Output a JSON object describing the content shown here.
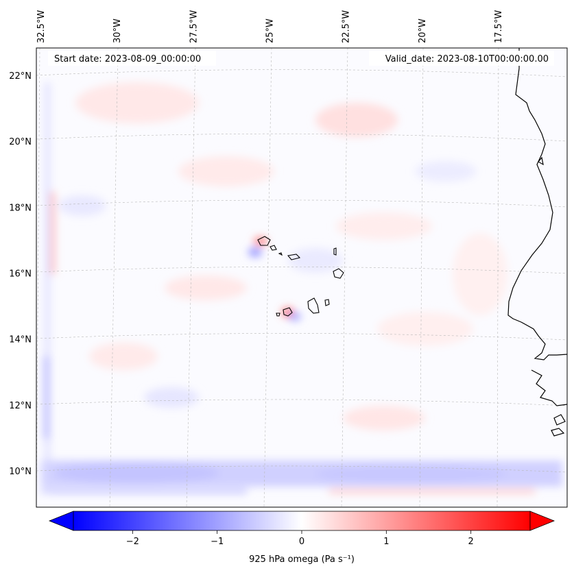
{
  "map": {
    "start_label": "Start date: 2023-08-09_00:00:00",
    "valid_label": "Valid_date: 2023-08-10T00:00:00.00",
    "lon_labels": [
      {
        "lon": -32.5,
        "text": "32.5°W"
      },
      {
        "lon": -30,
        "text": "30°W"
      },
      {
        "lon": -27.5,
        "text": "27.5°W"
      },
      {
        "lon": -25,
        "text": "25°W"
      },
      {
        "lon": -22.5,
        "text": "22.5°W"
      },
      {
        "lon": -20,
        "text": "20°W"
      },
      {
        "lon": -17.5,
        "text": "17.5°W"
      }
    ],
    "lat_labels": [
      {
        "lat": 22,
        "text": "22°N"
      },
      {
        "lat": 20,
        "text": "20°N"
      },
      {
        "lat": 18,
        "text": "18°N"
      },
      {
        "lat": 16,
        "text": "16°N"
      },
      {
        "lat": 14,
        "text": "14°N"
      },
      {
        "lat": 12,
        "text": "12°N"
      },
      {
        "lat": 10,
        "text": "10°N"
      }
    ],
    "colors": {
      "negative": "#0000ff",
      "zero": "#ffffff",
      "positive": "#ff0000",
      "coastline": "#000000",
      "gridline": "#b0b0b0"
    }
  },
  "colorbar": {
    "label": "925 hPa omega (Pa s⁻¹)",
    "vmin": -2.7,
    "vmax": 2.7,
    "ticks": [
      {
        "value": -2,
        "text": "−2"
      },
      {
        "value": -1,
        "text": "−1"
      },
      {
        "value": 0,
        "text": "0"
      },
      {
        "value": 1,
        "text": "1"
      },
      {
        "value": 2,
        "text": "2"
      }
    ]
  }
}
